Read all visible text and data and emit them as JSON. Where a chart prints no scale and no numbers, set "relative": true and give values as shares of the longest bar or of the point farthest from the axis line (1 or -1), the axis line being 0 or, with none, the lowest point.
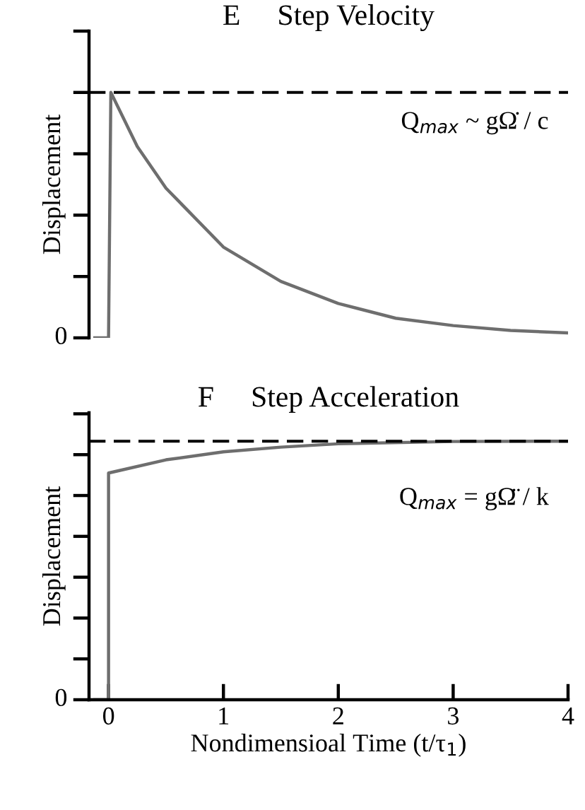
{
  "chart_data": [
    {
      "type": "line",
      "title": "E     Step Velocity",
      "ylabel": "Displacement",
      "relative": true,
      "x": [
        -0.12,
        0,
        0.02,
        0.25,
        0.5,
        1,
        1.5,
        2,
        2.5,
        3,
        3.5,
        4
      ],
      "series": [
        {
          "color": "#6e6e6e",
          "values": [
            0,
            0,
            1,
            0.78,
            0.61,
            0.37,
            0.23,
            0.14,
            0.08,
            0.05,
            0.03,
            0.02
          ]
        }
      ],
      "xlim": [
        -0.17,
        4
      ],
      "tick_labels": false,
      "ref_lines": [
        {
          "axis": "y",
          "value": 1,
          "color": "#000000",
          "line_style": "dashed"
        }
      ],
      "annotations": [
        "Q$_{max}$ ~ gΩ̇ / c",
        {
          "text": "0",
          "x": -0.17,
          "y": 0
        }
      ]
    },
    {
      "type": "line",
      "title": "F     Step Acceleration",
      "ylabel": "Displacement",
      "xlabel": "Nondimensioal Time (t/τ$_{1}$)",
      "relative": true,
      "x": [
        -0.12,
        0,
        0,
        0.5,
        1,
        1.5,
        2,
        3,
        4
      ],
      "series": [
        {
          "color": "#6e6e6e",
          "values": [
            0,
            0,
            0.877,
            0.928,
            0.959,
            0.977,
            0.99,
            0.999,
            1
          ]
        }
      ],
      "xlim": [
        -0.17,
        4
      ],
      "xticks": [
        0,
        1,
        2,
        3,
        4
      ],
      "tick_labels": "x",
      "ref_lines": [
        {
          "axis": "y",
          "value": 1,
          "color": "#000000",
          "line_style": "dashed"
        }
      ],
      "annotations": [
        "Q$_{max}$ = gΩ̈ / k",
        {
          "text": "0",
          "x": -0.17,
          "y": 0
        }
      ]
    }
  ]
}
